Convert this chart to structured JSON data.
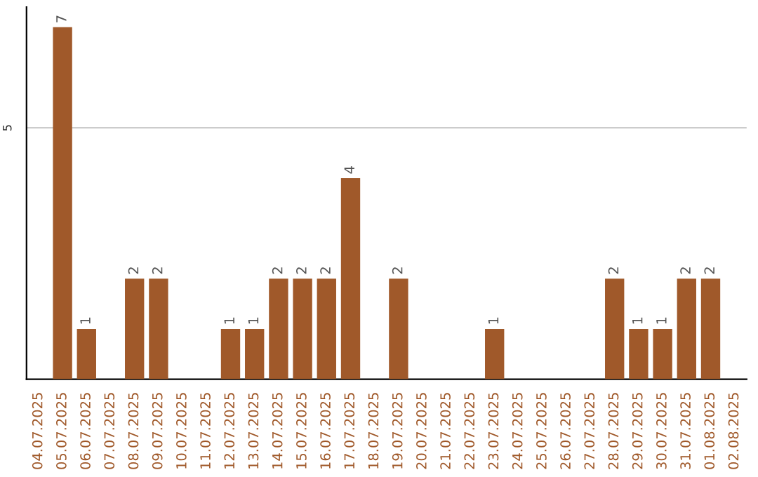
{
  "chart_data": {
    "type": "bar",
    "categories": [
      "04.07.2025",
      "05.07.2025",
      "06.07.2025",
      "07.07.2025",
      "08.07.2025",
      "09.07.2025",
      "10.07.2025",
      "11.07.2025",
      "12.07.2025",
      "13.07.2025",
      "14.07.2025",
      "15.07.2025",
      "16.07.2025",
      "17.07.2025",
      "18.07.2025",
      "19.07.2025",
      "20.07.2025",
      "21.07.2025",
      "22.07.2025",
      "23.07.2025",
      "24.07.2025",
      "25.07.2025",
      "26.07.2025",
      "27.07.2025",
      "28.07.2025",
      "29.07.2025",
      "30.07.2025",
      "31.07.2025",
      "01.08.2025",
      "02.08.2025"
    ],
    "values": [
      0,
      7,
      1,
      0,
      2,
      2,
      0,
      0,
      1,
      1,
      2,
      2,
      2,
      4,
      0,
      2,
      0,
      0,
      0,
      1,
      0,
      0,
      0,
      0,
      2,
      1,
      1,
      2,
      2,
      0
    ],
    "value_labels": [
      null,
      "7",
      "1",
      null,
      "2",
      "2",
      null,
      null,
      "1",
      "1",
      "2",
      "2",
      "2",
      "4",
      null,
      "2",
      null,
      null,
      null,
      "1",
      null,
      null,
      null,
      null,
      "2",
      "1",
      "1",
      "2",
      "2",
      null
    ],
    "color": "#a0592a",
    "ylim": [
      0,
      7.4
    ],
    "yticks": [
      5
    ],
    "grid": "y"
  }
}
